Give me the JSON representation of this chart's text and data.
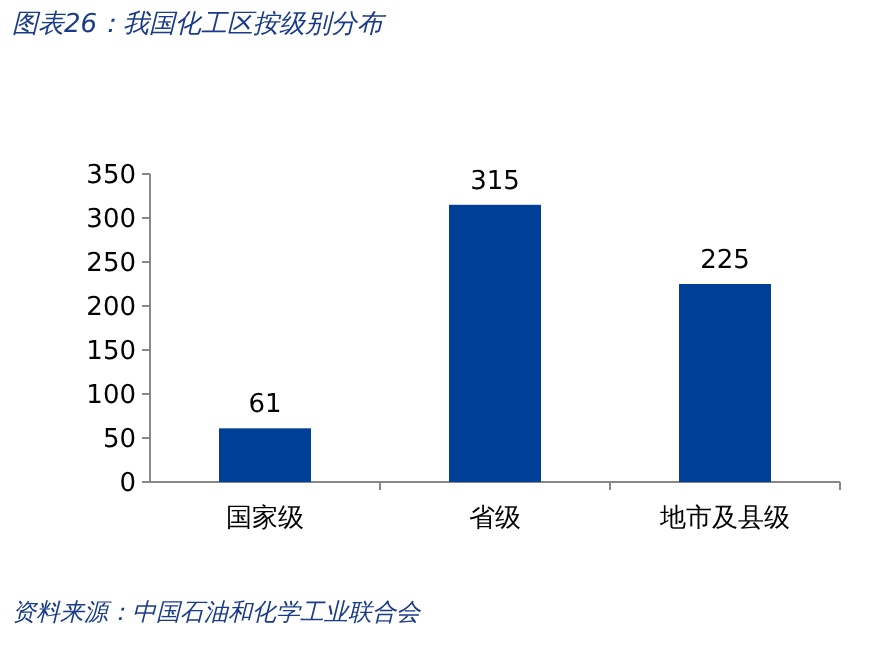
{
  "chart_data": {
    "type": "bar",
    "title": "图表26：我国化工区按级别分布",
    "categories": [
      "国家级",
      "省级",
      "地市及县级"
    ],
    "values": [
      61,
      315,
      225
    ],
    "color": "#003f98",
    "ylim": [
      0,
      350
    ],
    "yticks": [
      0,
      50,
      100,
      150,
      200,
      250,
      300,
      350
    ],
    "data_labels": true,
    "annotations": [
      "资料来源：中国石油和化学工业联合会"
    ]
  }
}
